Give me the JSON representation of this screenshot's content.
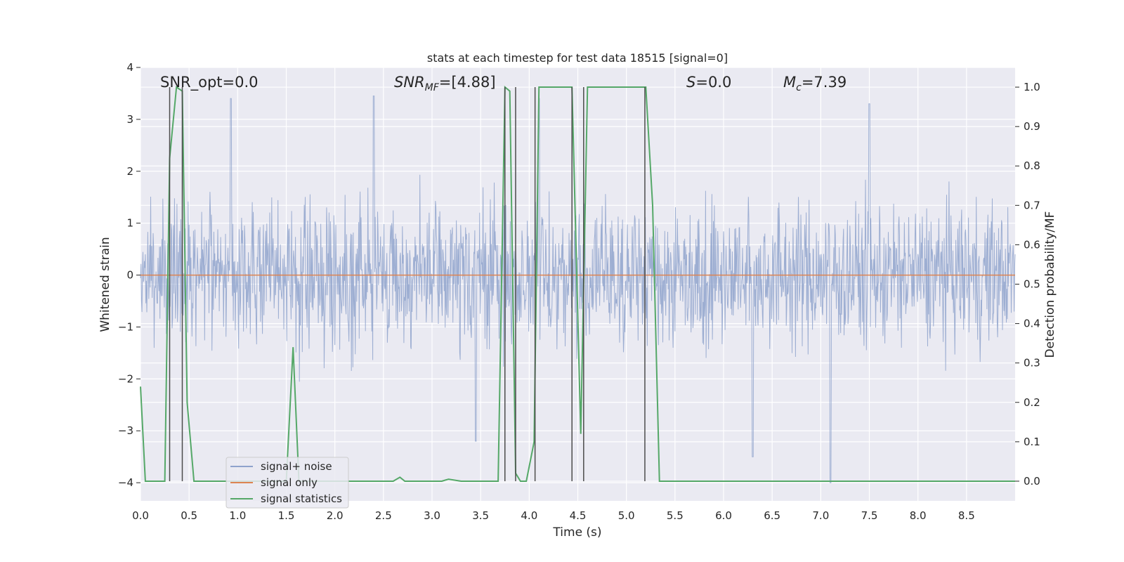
{
  "chart_data": {
    "type": "line",
    "title": "stats at each timestep for test data 18515 [signal=0]",
    "xlabel": "Time (s)",
    "ylabel": "Whitened strain",
    "ylabel_right": "Detection probability/MF",
    "xlim": [
      0.0,
      9.0
    ],
    "ylim": [
      -4.35,
      4.0
    ],
    "ylim_right": [
      -0.05,
      1.05
    ],
    "xticks": [
      "0.0",
      "0.5",
      "1.0",
      "1.5",
      "2.0",
      "2.5",
      "3.0",
      "3.5",
      "4.0",
      "4.5",
      "5.0",
      "5.5",
      "6.0",
      "6.5",
      "7.0",
      "7.5",
      "8.0",
      "8.5"
    ],
    "yticks": [
      "−4",
      "−3",
      "−2",
      "−1",
      "0",
      "1",
      "2",
      "3",
      "4"
    ],
    "yticks_right": [
      "0.0",
      "0.1",
      "0.2",
      "0.3",
      "0.4",
      "0.5",
      "0.6",
      "0.7",
      "0.8",
      "0.9",
      "1.0"
    ],
    "grid": true,
    "legend_position": "lower-left",
    "annotations": {
      "snr_opt": "SNR_opt=0.0",
      "snr_mf_main": "SNR",
      "snr_mf_sub": "MF",
      "snr_mf_value": "=[4.88]",
      "s_main": "S",
      "s_value": "=0.0",
      "mc_main": "M",
      "mc_sub": "c",
      "mc_value": "=7.39"
    },
    "colors": {
      "noise": "#8fa3cc",
      "signal": "#dd8452",
      "stats": "#55a868",
      "markers": "#4c4c4c",
      "background": "#eaeaf2"
    },
    "series": [
      {
        "name": "signal+ noise",
        "axis": "left",
        "kind": "noise",
        "description_values": {
          "typical_range": [
            -2.0,
            2.2
          ],
          "extremes": [
            {
              "x": 0.93,
              "y": 3.4
            },
            {
              "x": 2.4,
              "y": 3.45
            },
            {
              "x": 4.1,
              "y": 3.4
            },
            {
              "x": 6.3,
              "y": -3.5
            },
            {
              "x": 7.1,
              "y": -4.0
            },
            {
              "x": 7.5,
              "y": 3.3
            },
            {
              "x": 3.45,
              "y": -3.2
            }
          ]
        }
      },
      {
        "name": "signal only",
        "axis": "left",
        "x": [
          0.0,
          9.0
        ],
        "y": [
          0.0,
          0.0
        ]
      },
      {
        "name": "signal statistics",
        "axis": "right",
        "x": [
          0.0,
          0.05,
          0.25,
          0.3,
          0.37,
          0.43,
          0.48,
          0.55,
          0.6,
          1.5,
          1.57,
          1.63,
          2.6,
          2.67,
          2.72,
          3.1,
          3.17,
          3.3,
          3.68,
          3.75,
          3.8,
          3.86,
          3.91,
          3.97,
          4.05,
          4.1,
          4.44,
          4.53,
          4.6,
          4.65,
          5.2,
          5.27,
          5.34,
          9.0
        ],
        "y": [
          0.24,
          0.0,
          0.0,
          0.82,
          1.0,
          0.99,
          0.2,
          0.0,
          0.0,
          0.0,
          0.34,
          0.0,
          0.0,
          0.01,
          0.0,
          0.0,
          0.005,
          0.0,
          0.0,
          1.0,
          0.99,
          0.02,
          0.0,
          0.0,
          0.1,
          1.0,
          1.0,
          0.12,
          1.0,
          1.0,
          1.0,
          0.7,
          0.0,
          0.0
        ]
      }
    ],
    "vertical_markers_x": [
      0.3,
      0.43,
      3.75,
      3.86,
      4.06,
      4.44,
      4.56,
      5.19
    ],
    "legend": [
      {
        "label": "signal+ noise",
        "color": "#8fa3cc"
      },
      {
        "label": "signal only",
        "color": "#dd8452"
      },
      {
        "label": "signal statistics",
        "color": "#55a868"
      }
    ]
  }
}
